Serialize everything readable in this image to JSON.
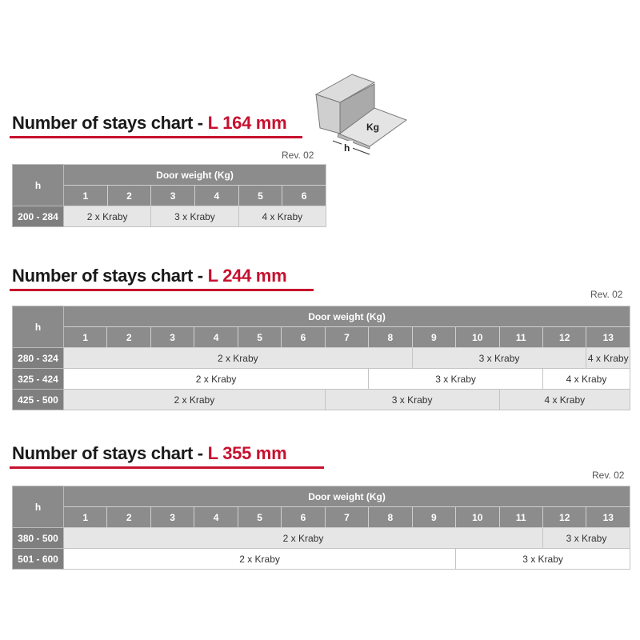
{
  "colors": {
    "accent": "#c8102e",
    "header": "#8c8c8c"
  },
  "illustration": {
    "icon": "door-box-icon",
    "weight_label": "Kg",
    "height_label": "h"
  },
  "charts": [
    {
      "title_prefix": "Number of stays chart - ",
      "title_accent": "L 164 mm",
      "rev": "Rev. 02",
      "h_header": "h",
      "group_header": "Door weight (Kg)",
      "columns": [
        "1",
        "2",
        "3",
        "4",
        "5",
        "6"
      ],
      "rows": [
        {
          "range": "200 - 284",
          "cells": [
            {
              "text": "2 x Kraby",
              "span": 2
            },
            {
              "text": "3 x Kraby",
              "span": 2
            },
            {
              "text": "4 x Kraby",
              "span": 2
            }
          ]
        }
      ]
    },
    {
      "title_prefix": "Number of stays chart - ",
      "title_accent": "L 244 mm",
      "rev": "Rev. 02",
      "h_header": "h",
      "group_header": "Door weight (Kg)",
      "columns": [
        "1",
        "2",
        "3",
        "4",
        "5",
        "6",
        "7",
        "8",
        "9",
        "10",
        "11",
        "12",
        "13"
      ],
      "rows": [
        {
          "range": "280 - 324",
          "cells": [
            {
              "text": "2 x Kraby",
              "span": 8
            },
            {
              "text": "3 x Kraby",
              "span": 4
            },
            {
              "text": "4 x Kraby",
              "span": 1
            }
          ]
        },
        {
          "range": "325 - 424",
          "cells": [
            {
              "text": "2 x Kraby",
              "span": 7
            },
            {
              "text": "3 x Kraby",
              "span": 4
            },
            {
              "text": "4 x Kraby",
              "span": 2
            }
          ]
        },
        {
          "range": "425 - 500",
          "cells": [
            {
              "text": "2 x Kraby",
              "span": 6
            },
            {
              "text": "3 x Kraby",
              "span": 4
            },
            {
              "text": "4 x Kraby",
              "span": 3
            }
          ]
        }
      ]
    },
    {
      "title_prefix": "Number of stays chart - ",
      "title_accent": "L 355 mm",
      "rev": "Rev. 02",
      "h_header": "h",
      "group_header": "Door weight (Kg)",
      "columns": [
        "1",
        "2",
        "3",
        "4",
        "5",
        "6",
        "7",
        "8",
        "9",
        "10",
        "11",
        "12",
        "13"
      ],
      "rows": [
        {
          "range": "380 - 500",
          "cells": [
            {
              "text": "2 x Kraby",
              "span": 11
            },
            {
              "text": "3 x Kraby",
              "span": 2
            }
          ]
        },
        {
          "range": "501 - 600",
          "cells": [
            {
              "text": "2 x Kraby",
              "span": 9
            },
            {
              "text": "3 x Kraby",
              "span": 4
            }
          ]
        }
      ]
    }
  ]
}
